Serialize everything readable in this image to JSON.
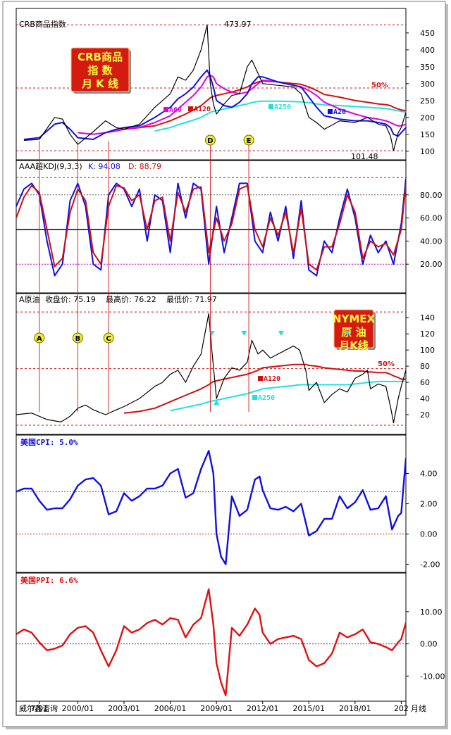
{
  "colors": {
    "panel_border": "#000000",
    "outer_shadow": "#8c8c8c",
    "price_line": "#000000",
    "ma20": "#1010e0",
    "ma60": "#e000e0",
    "ma120": "#d01010",
    "ma250": "#20e0e0",
    "kdj_k": "#1010e0",
    "kdj_d": "#d01010",
    "cpi": "#1010e0",
    "ppi": "#e01010",
    "ref_red": "#d01010",
    "ref_dark": "#606060",
    "ref_purple": "#c000c0",
    "stamp_bg": "#d41b12",
    "stamp_text": "#ffff40",
    "marker_circle": "#f4f020"
  },
  "chart_data": [
    {
      "type": "line",
      "id": "crb",
      "title": "CRB商品指数",
      "stamp": [
        "CRB商品",
        "指  数",
        "月 K 线"
      ],
      "ylim": [
        85,
        485
      ],
      "yticks": [
        "450",
        "400",
        "350",
        "300",
        "250",
        "200",
        "150",
        "100"
      ],
      "ytick_values": [
        450,
        400,
        350,
        300,
        250,
        200,
        150,
        100
      ],
      "annotations": {
        "high": "473.97",
        "low": "101.48",
        "pct50": "50%"
      },
      "ma_labels": {
        "ma60": "A60",
        "ma120": "A120",
        "ma250": "A250",
        "ma20": "A20"
      },
      "x": [
        1996.5,
        1997.5,
        1998.5,
        1999.0,
        1999.5,
        2000.0,
        2001.0,
        2001.8,
        2002.5,
        2003.0,
        2004.0,
        2005.0,
        2006.0,
        2006.5,
        2007.0,
        2007.5,
        2008.0,
        2008.4,
        2008.6,
        2008.8,
        2009.0,
        2009.5,
        2010.0,
        2010.5,
        2011.0,
        2011.3,
        2011.7,
        2012.0,
        2013.0,
        2014.0,
        2014.5,
        2015.0,
        2015.5,
        2016.0,
        2017.0,
        2018.0,
        2018.8,
        2019.5,
        2020.0,
        2020.3,
        2020.5,
        2020.8,
        2021.0,
        2021.3
      ],
      "values": [
        132,
        135,
        200,
        195,
        150,
        120,
        158,
        190,
        170,
        165,
        180,
        230,
        270,
        320,
        310,
        340,
        400,
        473.97,
        300,
        240,
        210,
        240,
        265,
        270,
        350,
        370,
        330,
        300,
        295,
        290,
        270,
        200,
        185,
        165,
        190,
        185,
        200,
        180,
        175,
        145,
        101.48,
        155,
        170,
        215
      ],
      "ma20": [
        135,
        140,
        180,
        185,
        165,
        140,
        135,
        155,
        165,
        170,
        175,
        200,
        230,
        255,
        270,
        290,
        320,
        340,
        320,
        290,
        250,
        235,
        230,
        245,
        270,
        300,
        320,
        320,
        305,
        295,
        290,
        260,
        230,
        205,
        195,
        190,
        190,
        185,
        180,
        170,
        150,
        145,
        155,
        170
      ],
      "ma60": [
        null,
        null,
        null,
        null,
        null,
        155,
        150,
        155,
        160,
        165,
        170,
        185,
        205,
        225,
        245,
        265,
        290,
        320,
        325,
        320,
        300,
        285,
        275,
        270,
        275,
        285,
        300,
        310,
        305,
        295,
        290,
        280,
        265,
        245,
        225,
        210,
        200,
        195,
        190,
        185,
        180,
        175,
        175,
        180
      ],
      "ma120": [
        null,
        null,
        null,
        null,
        null,
        null,
        null,
        null,
        null,
        165,
        170,
        175,
        190,
        200,
        210,
        222,
        235,
        250,
        258,
        262,
        265,
        270,
        275,
        282,
        290,
        298,
        305,
        308,
        305,
        300,
        298,
        290,
        280,
        268,
        260,
        250,
        245,
        240,
        238,
        235,
        230,
        225,
        222,
        220
      ],
      "ma250": [
        null,
        null,
        null,
        null,
        null,
        null,
        null,
        null,
        null,
        null,
        null,
        160,
        170,
        178,
        185,
        192,
        200,
        210,
        215,
        218,
        220,
        225,
        230,
        235,
        240,
        244,
        247,
        248,
        248,
        247,
        246,
        244,
        240,
        237,
        235,
        232,
        230,
        228,
        226,
        224,
        222,
        220,
        218,
        216
      ],
      "ref_levels": {
        "top": 473.97,
        "pct50": 287,
        "bottom": 101.48
      }
    },
    {
      "type": "line",
      "id": "kdj",
      "title": "AAA超KDJ(9,3,3)",
      "k_label": "K: 94.08",
      "d_label": "D: 88.79",
      "ylim": [
        0,
        100
      ],
      "yticks": [
        "80.00",
        "60.00",
        "40.00",
        "20.00"
      ],
      "ytick_values": [
        80,
        60,
        40,
        20
      ],
      "ref_levels": [
        95,
        80,
        50,
        20
      ],
      "x": [
        1996.0,
        1996.5,
        1997.0,
        1997.5,
        1998.0,
        1998.5,
        1999.0,
        1999.5,
        2000.0,
        2000.5,
        2001.0,
        2001.5,
        2002.0,
        2002.5,
        2003.0,
        2003.5,
        2004.0,
        2004.5,
        2005.0,
        2005.5,
        2006.0,
        2006.5,
        2007.0,
        2007.5,
        2008.0,
        2008.5,
        2009.0,
        2009.5,
        2010.0,
        2010.5,
        2011.0,
        2011.5,
        2012.0,
        2012.5,
        2013.0,
        2013.5,
        2014.0,
        2014.5,
        2015.0,
        2015.5,
        2016.0,
        2016.5,
        2017.0,
        2017.5,
        2018.0,
        2018.5,
        2019.0,
        2019.5,
        2020.0,
        2020.5,
        2021.0,
        2021.3
      ],
      "k": [
        70,
        85,
        90,
        80,
        40,
        10,
        20,
        75,
        90,
        70,
        20,
        15,
        80,
        90,
        85,
        70,
        85,
        40,
        80,
        75,
        30,
        90,
        60,
        90,
        85,
        20,
        70,
        30,
        60,
        90,
        90,
        40,
        30,
        65,
        40,
        70,
        25,
        75,
        15,
        10,
        40,
        30,
        60,
        85,
        60,
        20,
        45,
        30,
        40,
        20,
        55,
        94.08
      ],
      "d": [
        60,
        78,
        88,
        82,
        50,
        18,
        25,
        65,
        85,
        75,
        30,
        20,
        70,
        88,
        86,
        75,
        80,
        50,
        75,
        78,
        40,
        82,
        65,
        85,
        87,
        30,
        60,
        40,
        55,
        85,
        88,
        50,
        35,
        60,
        45,
        65,
        30,
        68,
        20,
        15,
        35,
        35,
        55,
        80,
        65,
        25,
        40,
        35,
        38,
        28,
        50,
        88.79
      ]
    },
    {
      "type": "line",
      "id": "oil",
      "title": "A原油",
      "close_label": "收盘价: 75.19",
      "high_label": "最高价: 76.22",
      "low_label": "最低价: 71.97",
      "stamp": [
        "NYMEX",
        "原  油",
        "月K线"
      ],
      "ylim": [
        0,
        155
      ],
      "yticks": [
        "140",
        "120",
        "100",
        "80",
        "60",
        "40",
        "20"
      ],
      "ytick_values": [
        140,
        120,
        100,
        80,
        60,
        40,
        20
      ],
      "annotations": {
        "pct50": "50%"
      },
      "ma_labels": {
        "ma120": "A120",
        "ma250": "A250"
      },
      "x": [
        1996.0,
        1997.0,
        1998.0,
        1998.9,
        1999.5,
        2000.0,
        2000.5,
        2001.0,
        2001.8,
        2002.5,
        2003.0,
        2004.0,
        2005.0,
        2005.5,
        2006.0,
        2006.5,
        2007.0,
        2007.5,
        2008.0,
        2008.5,
        2008.7,
        2009.0,
        2009.5,
        2010.0,
        2010.5,
        2011.0,
        2011.3,
        2011.7,
        2012.0,
        2012.5,
        2013.0,
        2013.5,
        2014.0,
        2014.4,
        2014.8,
        2015.0,
        2015.5,
        2016.0,
        2016.5,
        2017.0,
        2017.5,
        2018.0,
        2018.5,
        2018.8,
        2019.0,
        2019.5,
        2020.0,
        2020.3,
        2020.5,
        2020.8,
        2021.0,
        2021.3
      ],
      "values": [
        20,
        22,
        14,
        11,
        18,
        28,
        32,
        26,
        20,
        26,
        30,
        40,
        55,
        60,
        70,
        75,
        60,
        80,
        95,
        145,
        100,
        40,
        65,
        78,
        75,
        85,
        112,
        95,
        100,
        90,
        95,
        100,
        105,
        100,
        75,
        50,
        60,
        35,
        45,
        52,
        48,
        65,
        70,
        75,
        52,
        58,
        55,
        30,
        10,
        40,
        55,
        75.19
      ],
      "ma120": [
        null,
        null,
        null,
        null,
        null,
        null,
        null,
        null,
        null,
        null,
        22,
        24,
        28,
        32,
        36,
        40,
        44,
        48,
        52,
        57,
        60,
        62,
        64,
        66,
        68,
        70,
        72,
        75,
        78,
        79,
        80,
        81,
        82,
        82,
        82,
        81,
        80,
        78,
        77,
        76,
        75,
        74,
        74,
        73,
        73,
        72,
        72,
        70,
        68,
        66,
        64,
        64
      ],
      "ma250": [
        null,
        null,
        null,
        null,
        null,
        null,
        null,
        null,
        null,
        null,
        null,
        null,
        null,
        null,
        25,
        27,
        29,
        31,
        33,
        36,
        37,
        38,
        40,
        42,
        44,
        46,
        48,
        50,
        52,
        53,
        54,
        55,
        56,
        57,
        57,
        57,
        57,
        57,
        57,
        57,
        57,
        58,
        59,
        60,
        60,
        61,
        61,
        61,
        61,
        61,
        61,
        62
      ],
      "ref_levels": {
        "top": 147,
        "pct50": 77,
        "bottom": 7
      },
      "markers_down_x": [
        2010.8,
        2013.2,
        2017.5,
        2008.7
      ],
      "markers_up_x": [
        2009.0
      ]
    },
    {
      "type": "line",
      "id": "cpi",
      "title": "美国CPI: 5.0%",
      "ylim": [
        -2.3,
        5.7
      ],
      "yticks": [
        "4.00",
        "2.00",
        "0.00",
        "-2.00"
      ],
      "ytick_values": [
        4,
        2,
        0,
        -2
      ],
      "ref_levels": [
        2.8,
        0
      ],
      "x": [
        1996.0,
        1996.5,
        1997.0,
        1997.5,
        1998.0,
        1998.5,
        1999.0,
        1999.5,
        2000.0,
        2000.5,
        2001.0,
        2001.5,
        2002.0,
        2002.5,
        2003.0,
        2003.5,
        2004.0,
        2004.5,
        2005.0,
        2005.5,
        2006.0,
        2006.5,
        2007.0,
        2007.5,
        2008.0,
        2008.5,
        2008.8,
        2009.0,
        2009.3,
        2009.6,
        2010.0,
        2010.5,
        2011.0,
        2011.5,
        2011.8,
        2012.0,
        2012.5,
        2013.0,
        2013.5,
        2014.0,
        2014.5,
        2015.0,
        2015.5,
        2016.0,
        2016.5,
        2017.0,
        2017.5,
        2018.0,
        2018.5,
        2019.0,
        2019.5,
        2020.0,
        2020.4,
        2020.8,
        2021.0,
        2021.3
      ],
      "values": [
        2.8,
        3.0,
        3.0,
        2.2,
        1.6,
        1.7,
        1.7,
        2.3,
        3.2,
        3.6,
        3.7,
        3.2,
        1.3,
        1.5,
        2.7,
        2.2,
        2.5,
        3.0,
        3.0,
        3.2,
        4.0,
        4.3,
        2.4,
        2.7,
        4.3,
        5.5,
        4.0,
        0.0,
        -1.5,
        -2.0,
        2.5,
        1.2,
        1.6,
        3.6,
        3.8,
        2.9,
        1.7,
        1.6,
        1.8,
        1.5,
        2.0,
        -0.1,
        0.2,
        1.0,
        1.0,
        2.5,
        1.7,
        2.1,
        2.9,
        1.6,
        1.7,
        2.5,
        0.3,
        1.2,
        1.4,
        5.0
      ]
    },
    {
      "type": "line",
      "id": "ppi",
      "title": "美国PPI: 6.6%",
      "ylim": [
        -16.5,
        18.5
      ],
      "yticks": [
        "10.00",
        "0.00",
        "-10.00"
      ],
      "ytick_values": [
        10,
        0,
        -10
      ],
      "ref_levels": [
        0
      ],
      "x": [
        1996.0,
        1996.5,
        1997.0,
        1997.5,
        1998.0,
        1998.5,
        1999.0,
        1999.5,
        2000.0,
        2000.5,
        2001.0,
        2001.5,
        2002.0,
        2002.5,
        2003.0,
        2003.5,
        2004.0,
        2004.5,
        2005.0,
        2005.5,
        2006.0,
        2006.5,
        2007.0,
        2007.5,
        2008.0,
        2008.5,
        2008.8,
        2009.0,
        2009.3,
        2009.6,
        2010.0,
        2010.5,
        2011.0,
        2011.5,
        2011.8,
        2012.0,
        2012.5,
        2013.0,
        2013.5,
        2014.0,
        2014.5,
        2015.0,
        2015.5,
        2016.0,
        2016.5,
        2017.0,
        2017.5,
        2018.0,
        2018.5,
        2019.0,
        2019.5,
        2020.0,
        2020.4,
        2020.8,
        2021.0,
        2021.3
      ],
      "values": [
        3.0,
        4.5,
        3.5,
        0.5,
        -2.0,
        -1.5,
        -0.5,
        3.0,
        5.0,
        5.5,
        3.5,
        -2.0,
        -7.0,
        -2.0,
        5.5,
        3.5,
        4.5,
        6.5,
        7.5,
        6.0,
        8.0,
        7.5,
        2.0,
        6.0,
        8.0,
        17.0,
        6.0,
        -6.0,
        -12.0,
        -16.0,
        5.0,
        2.5,
        6.0,
        11.0,
        9.0,
        3.5,
        0.0,
        1.5,
        2.0,
        2.5,
        1.5,
        -5.0,
        -7.0,
        -6.0,
        -3.0,
        3.5,
        2.0,
        3.0,
        4.5,
        0.5,
        0.0,
        -1.0,
        -2.0,
        0.5,
        1.5,
        6.6
      ]
    }
  ],
  "vertical_markers": [
    {
      "label": "A",
      "x": 1997.5
    },
    {
      "label": "B",
      "x": 2000.0
    },
    {
      "label": "C",
      "x": 2002.0
    },
    {
      "label": "D",
      "x": 2008.6
    },
    {
      "label": "E",
      "x": 2011.1
    }
  ],
  "x_axis": {
    "xlim": [
      1996.0,
      2021.3
    ],
    "labels": [
      "7/01",
      "2000/01",
      "2003/01",
      "2006/01",
      "2009/01",
      "2012/01",
      "2015/01",
      "2018/01",
      "202"
    ],
    "label_x": [
      1997.5,
      2000.0,
      2003.0,
      2006.0,
      2009.0,
      2012.0,
      2015.0,
      2018.0,
      2021.0
    ],
    "left_label": "威尔鑫咨询",
    "right_label": "月线"
  }
}
